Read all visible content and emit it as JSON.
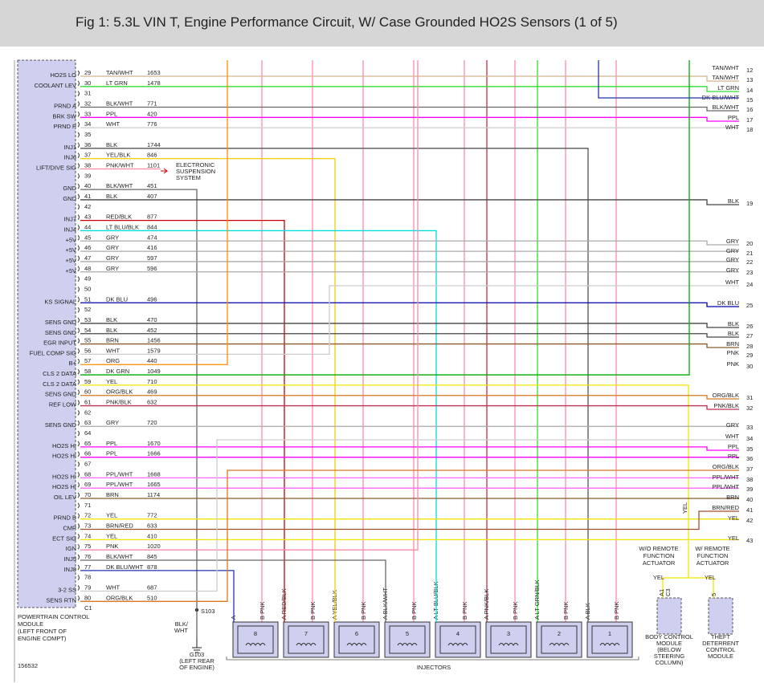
{
  "header": {
    "title": "Fig 1: 5.3L VIN T, Engine Performance Circuit, W/ Case Grounded HO2S Sensors (1 of 5)"
  },
  "pcm": {
    "lines": [
      "POWERTRAIN CONTROL",
      "MODULE",
      "(LEFT FRONT OF",
      "ENGINE COMPT)"
    ],
    "connector": "C1"
  },
  "pins": [
    {
      "pin": 29,
      "signal": "HO2S LO",
      "color": "TAN/WHT",
      "circuit": 1653,
      "hex": "#d2b48c"
    },
    {
      "pin": 30,
      "signal": "COOLANT LEV",
      "color": "LT GRN",
      "circuit": 1478,
      "hex": "#33dd33"
    },
    {
      "pin": 31
    },
    {
      "pin": 32,
      "signal": "PRND A",
      "color": "BLK/WHT",
      "circuit": 771,
      "hex": "#666666"
    },
    {
      "pin": 33,
      "signal": "BRK SW",
      "color": "PPL",
      "circuit": 420,
      "hex": "#ff00ff"
    },
    {
      "pin": 34,
      "signal": "PRND P",
      "color": "WHT",
      "circuit": 776,
      "hex": "#cccccc"
    },
    {
      "pin": 35
    },
    {
      "pin": 36,
      "signal": "INJ1",
      "color": "BLK",
      "circuit": 1744,
      "hex": "#555555"
    },
    {
      "pin": 37,
      "signal": "INJ6",
      "color": "YEL/BLK",
      "circuit": 846,
      "hex": "#f0d000"
    },
    {
      "pin": 38,
      "signal": "LIFT/DIVE SIG",
      "color": "PNK/WHT",
      "circuit": 1101,
      "hex": "#ff88a0"
    },
    {
      "pin": 39
    },
    {
      "pin": 40,
      "signal": "GND",
      "color": "BLK/WHT",
      "circuit": 451,
      "hex": "#666666"
    },
    {
      "pin": 41,
      "signal": "GND",
      "color": "BLK",
      "circuit": 407,
      "hex": "#444444"
    },
    {
      "pin": 42
    },
    {
      "pin": 43,
      "signal": "INJ7",
      "color": "RED/BLK",
      "circuit": 877,
      "hex": "#cc0000"
    },
    {
      "pin": 44,
      "signal": "INJ4",
      "color": "LT BLU/BLK",
      "circuit": 844,
      "hex": "#00dddd"
    },
    {
      "pin": 45,
      "signal": "+5V",
      "color": "GRY",
      "circuit": 474,
      "hex": "#aaaaaa"
    },
    {
      "pin": 46,
      "signal": "+5V",
      "color": "GRY",
      "circuit": 416,
      "hex": "#aaaaaa"
    },
    {
      "pin": 47,
      "signal": "+5V",
      "color": "GRY",
      "circuit": 597,
      "hex": "#aaaaaa"
    },
    {
      "pin": 48,
      "signal": "+5V",
      "color": "GRY",
      "circuit": 596,
      "hex": "#aaaaaa"
    },
    {
      "pin": 49
    },
    {
      "pin": 50
    },
    {
      "pin": 51,
      "signal": "KS SIGNAL",
      "color": "DK BLU",
      "circuit": 496,
      "hex": "#0000aa"
    },
    {
      "pin": 52
    },
    {
      "pin": 53,
      "signal": "SENS GND",
      "color": "BLK",
      "circuit": 470,
      "hex": "#444444"
    },
    {
      "pin": 54,
      "signal": "SENS GND",
      "color": "BLK",
      "circuit": 452,
      "hex": "#444444"
    },
    {
      "pin": 55,
      "signal": "EGR INPUT",
      "color": "BRN",
      "circuit": 1456,
      "hex": "#8b5a2b"
    },
    {
      "pin": 56,
      "signal": "FUEL COMP SIG",
      "color": "WHT",
      "circuit": 1579,
      "hex": "#cccccc"
    },
    {
      "pin": 57,
      "signal": "B+",
      "color": "ORG",
      "circuit": 440,
      "hex": "#ff8c00"
    },
    {
      "pin": 58,
      "signal": "CLS 2 DATA",
      "color": "DK GRN",
      "circuit": 1049,
      "hex": "#00aa00"
    },
    {
      "pin": 59,
      "signal": "CLS 2 DATA",
      "color": "YEL",
      "circuit": 710,
      "hex": "#f5e600"
    },
    {
      "pin": 60,
      "signal": "SENS GND",
      "color": "ORG/BLK",
      "circuit": 469,
      "hex": "#d87820"
    },
    {
      "pin": 61,
      "signal": "REF LOW",
      "color": "PNK/BLK",
      "circuit": 632,
      "hex": "#c03050"
    },
    {
      "pin": 62
    },
    {
      "pin": 63,
      "signal": "SENS GND",
      "color": "GRY",
      "circuit": 720,
      "hex": "#aaaaaa"
    },
    {
      "pin": 64
    },
    {
      "pin": 65,
      "signal": "HO2S HI",
      "color": "PPL",
      "circuit": 1670,
      "hex": "#ff00ff"
    },
    {
      "pin": 66,
      "signal": "HO2S HI",
      "color": "PPL",
      "circuit": 1666,
      "hex": "#ff00ff"
    },
    {
      "pin": 67
    },
    {
      "pin": 68,
      "signal": "HO2S HI",
      "color": "PPL/WHT",
      "circuit": 1668,
      "hex": "#ff66ff"
    },
    {
      "pin": 69,
      "signal": "HO2S HI",
      "color": "PPL/WHT",
      "circuit": 1665,
      "hex": "#ff66ff"
    },
    {
      "pin": 70,
      "signal": "OIL LEV",
      "color": "BRN",
      "circuit": 1174,
      "hex": "#8b5a2b"
    },
    {
      "pin": 71
    },
    {
      "pin": 72,
      "signal": "PRND B",
      "color": "YEL",
      "circuit": 772,
      "hex": "#f5e600"
    },
    {
      "pin": 73,
      "signal": "CMP",
      "color": "BRN/RED",
      "circuit": 633,
      "hex": "#a0522d"
    },
    {
      "pin": 74,
      "signal": "ECT SIG",
      "color": "YEL",
      "circuit": 410,
      "hex": "#f5e600"
    },
    {
      "pin": 75,
      "signal": "IGN",
      "color": "PNK",
      "circuit": 1020,
      "hex": "#ff88aa"
    },
    {
      "pin": 76,
      "signal": "INJ5",
      "color": "BLK/WHT",
      "circuit": 845,
      "hex": "#666666"
    },
    {
      "pin": 77,
      "signal": "INJ8",
      "color": "DK BLU/WHT",
      "circuit": 878,
      "hex": "#2233aa"
    },
    {
      "pin": 78
    },
    {
      "pin": 79,
      "signal": "3-2 SS",
      "color": "WHT",
      "circuit": 687,
      "hex": "#cccccc"
    },
    {
      "pin": 80,
      "signal": "SENS RTN",
      "color": "ORG/BLK",
      "circuit": 510,
      "hex": "#d87820"
    }
  ],
  "esc": {
    "lines": [
      "ELECTRONIC",
      "SUSPENSION",
      "SYSTEM"
    ]
  },
  "ground": {
    "splice": "S103",
    "wire": [
      "BLK/",
      "WHT"
    ],
    "ground": "G103",
    "location": [
      "(LEFT REAR",
      "OF ENGINE)"
    ]
  },
  "right_labels": [
    {
      "color": "TAN/WHT",
      "num": 12
    },
    {
      "color": "TAN/WHT",
      "num": 13
    },
    {
      "color": "LT GRN",
      "num": 14
    },
    {
      "color": "DK BLU/WHT",
      "num": 15
    },
    {
      "color": "BLK/WHT",
      "num": 16
    },
    {
      "color": "PPL",
      "num": 17
    },
    {
      "color": "WHT",
      "num": 18
    },
    {
      "color": "BLK",
      "num": 19
    },
    {
      "color": "GRY",
      "num": 20
    },
    {
      "color": "GRY",
      "num": 21
    },
    {
      "color": "GRY",
      "num": 22
    },
    {
      "color": "GRY",
      "num": 23
    },
    {
      "color": "WHT",
      "num": 24
    },
    {
      "color": "DK BLU",
      "num": 25
    },
    {
      "color": "BLK",
      "num": 26
    },
    {
      "color": "BLK",
      "num": 27
    },
    {
      "color": "BRN",
      "num": 28
    },
    {
      "color": "PNK",
      "num": 29
    },
    {
      "color": "PNK",
      "num": 30
    },
    {
      "color": "ORG/BLK",
      "num": 31
    },
    {
      "color": "PNK/BLK",
      "num": 32
    },
    {
      "color": "GRY",
      "num": 33
    },
    {
      "color": "WHT",
      "num": 34
    },
    {
      "color": "PPL",
      "num": 35
    },
    {
      "color": "PPL",
      "num": 36
    },
    {
      "color": "ORG/BLK",
      "num": 37
    },
    {
      "color": "PPL/WHT",
      "num": 38
    },
    {
      "color": "PPL/WHT",
      "num": 39
    },
    {
      "color": "BRN",
      "num": 40
    },
    {
      "color": "BRN/RED",
      "num": 41
    },
    {
      "color": "YEL",
      "num": 42
    },
    {
      "color": "YEL",
      "num": 43
    }
  ],
  "injectors": {
    "label": "INJECTORS",
    "items": [
      {
        "num": "8",
        "a": "A",
        "b": "B PNK",
        "hex": "#2233aa"
      },
      {
        "num": "7",
        "a": "A RED/BLK",
        "b": "B PNK",
        "hex": "#cc0000"
      },
      {
        "num": "6",
        "a": "A YEL/BLK",
        "b": "B PNK",
        "hex": "#f0d000"
      },
      {
        "num": "5",
        "a": "A BLK/WHT",
        "b": "B PNK",
        "hex": "#666666"
      },
      {
        "num": "4",
        "a": "A LT BLU/BLK",
        "b": "B PNK",
        "hex": "#00dddd"
      },
      {
        "num": "3",
        "a": "A PNK/BLK",
        "b": "B PNK",
        "hex": "#c03050"
      },
      {
        "num": "2",
        "a": "A LT GRN/BLK",
        "b": "B PNK",
        "hex": "#33dd33"
      },
      {
        "num": "1",
        "a": "A BLK",
        "b": "B PNK",
        "hex": "#555555"
      }
    ]
  },
  "bcm": {
    "option": [
      "W/O REMOTE",
      "FUNCTION",
      "ACTUATOR"
    ],
    "wire": "YEL",
    "pins": [
      "A1",
      "C3"
    ],
    "name": [
      "BODY CONTROL",
      "MODULE",
      "(BELOW",
      "STEERING",
      "COLUMN)"
    ]
  },
  "tdm": {
    "option": [
      "W/ REMOTE",
      "FUNCTION",
      "ACTUATOR"
    ],
    "wire": "YEL",
    "pin": "5",
    "name": [
      "THEFT",
      "DETERRENT",
      "CONTROL",
      "MODULE"
    ]
  },
  "vertical_label": "YEL",
  "figure_id": "156532"
}
